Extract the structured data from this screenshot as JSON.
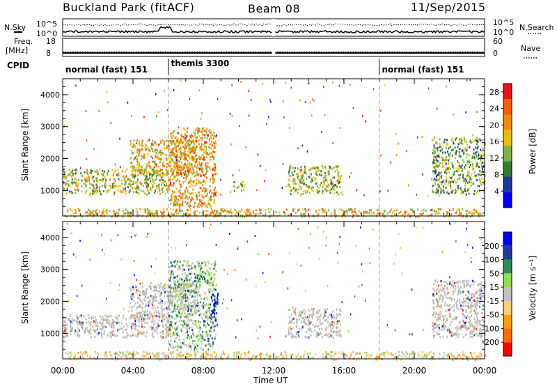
{
  "header": {
    "station": "Buckland Park (fitACF)",
    "beam": "Beam 08",
    "date": "11/Sep/2015"
  },
  "summary_panels": {
    "nsky_label": "N.Sky",
    "nsky_ticks": [
      "10^5",
      "10^0"
    ],
    "nsearch_label": "N.Search",
    "nsearch_ticks": [
      "10^5",
      "10^0"
    ],
    "freq_label": "Freq.",
    "freq_unit": "[MHz]",
    "freq_ticks": [
      "18",
      "8"
    ],
    "nave_label": "Nave",
    "nave_ticks": [
      "60",
      "0"
    ],
    "cpid_label": "CPID"
  },
  "cpid_segments": [
    {
      "label": "normal (fast) 151",
      "start_hour": 0,
      "end_hour": 6
    },
    {
      "label": "themis 3300",
      "start_hour": 6,
      "end_hour": 18
    },
    {
      "label": "normal (fast) 151",
      "start_hour": 18,
      "end_hour": 24
    }
  ],
  "colors": {
    "power_scale": [
      "#0000ff",
      "#1a3a9e",
      "#2e7d32",
      "#7cb342",
      "#e8c000",
      "#f08a00",
      "#ff5a00",
      "#e81010"
    ],
    "velocity_scale": [
      "#ff0000",
      "#ff6a00",
      "#ffa000",
      "#ffd070",
      "#c0c0c0",
      "#90e050",
      "#2e8b57",
      "#1a3a9e",
      "#0000ff"
    ],
    "ground_scatter": "#b8b8b8"
  },
  "chart_data": [
    {
      "type": "heatmap",
      "panel": "power",
      "xlabel": "",
      "ylabel": "Slant Range [km]",
      "xlim": [
        0,
        24
      ],
      "ylim": [
        200,
        4500
      ],
      "x_tick_labels": [
        "00:00",
        "04:00",
        "08:00",
        "12:00",
        "16:00",
        "20:00",
        "00:00"
      ],
      "y_tick_labels": [
        "1000",
        "2000",
        "3000",
        "4000"
      ],
      "colorbar": {
        "label": "Power [dB]",
        "ticks": [
          "28",
          "24",
          "20",
          "16",
          "12",
          "8",
          "4"
        ],
        "range": [
          0,
          30
        ]
      },
      "echo_regions": [
        {
          "start_hour": 0.0,
          "end_hour": 6.0,
          "range_lo_km": 900,
          "range_hi_km": 1700,
          "typical_power_db": 15
        },
        {
          "start_hour": 3.8,
          "end_hour": 7.6,
          "range_lo_km": 1500,
          "range_hi_km": 2600,
          "typical_power_db": 18
        },
        {
          "start_hour": 6.0,
          "end_hour": 8.7,
          "range_lo_km": 500,
          "range_hi_km": 3000,
          "typical_power_db": 20
        },
        {
          "start_hour": 9.7,
          "end_hour": 10.3,
          "range_lo_km": 1000,
          "range_hi_km": 1300,
          "typical_power_db": 14
        },
        {
          "start_hour": 12.8,
          "end_hour": 15.8,
          "range_lo_km": 900,
          "range_hi_km": 1800,
          "typical_power_db": 14
        },
        {
          "start_hour": 21.0,
          "end_hour": 24.0,
          "range_lo_km": 900,
          "range_hi_km": 2700,
          "typical_power_db": 12
        },
        {
          "start_hour": 0.0,
          "end_hour": 24.0,
          "range_lo_km": 200,
          "range_hi_km": 450,
          "typical_power_db": 18
        }
      ],
      "data_gaps": [
        {
          "start_hour": 11.9,
          "end_hour": 12.1
        }
      ]
    },
    {
      "type": "heatmap",
      "panel": "velocity",
      "xlabel": "Time UT",
      "ylabel": "Slant Range [km]",
      "xlim": [
        0,
        24
      ],
      "ylim": [
        200,
        4500
      ],
      "x_tick_labels": [
        "00:00",
        "04:00",
        "08:00",
        "12:00",
        "16:00",
        "20:00",
        "00:00"
      ],
      "y_tick_labels": [
        "1000",
        "2000",
        "3000",
        "4000"
      ],
      "colorbar": {
        "label": "Velocity [m s⁻¹]",
        "ticks": [
          "200",
          "100",
          "50",
          "15",
          "-15",
          "-50",
          "-100",
          "-200"
        ],
        "range": [
          -250,
          250
        ]
      },
      "echo_regions": [
        {
          "start_hour": 0.0,
          "end_hour": 6.0,
          "range_lo_km": 900,
          "range_hi_km": 1600,
          "class": "ground scatter"
        },
        {
          "start_hour": 3.8,
          "end_hour": 7.6,
          "range_lo_km": 1500,
          "range_hi_km": 2600,
          "class": "ground scatter"
        },
        {
          "start_hour": 6.0,
          "end_hour": 8.7,
          "range_lo_km": 500,
          "range_hi_km": 3300,
          "typical_velocity_ms": 60
        },
        {
          "start_hour": 8.4,
          "end_hour": 8.8,
          "range_lo_km": 1200,
          "range_hi_km": 2300,
          "typical_velocity_ms": 200
        },
        {
          "start_hour": 12.8,
          "end_hour": 15.8,
          "range_lo_km": 900,
          "range_hi_km": 1800,
          "class": "ground scatter"
        },
        {
          "start_hour": 21.0,
          "end_hour": 24.0,
          "range_lo_km": 900,
          "range_hi_km": 2700,
          "class": "ground scatter"
        },
        {
          "start_hour": 0.0,
          "end_hour": 24.0,
          "range_lo_km": 200,
          "range_hi_km": 450,
          "typical_velocity_ms": -40
        }
      ]
    }
  ]
}
